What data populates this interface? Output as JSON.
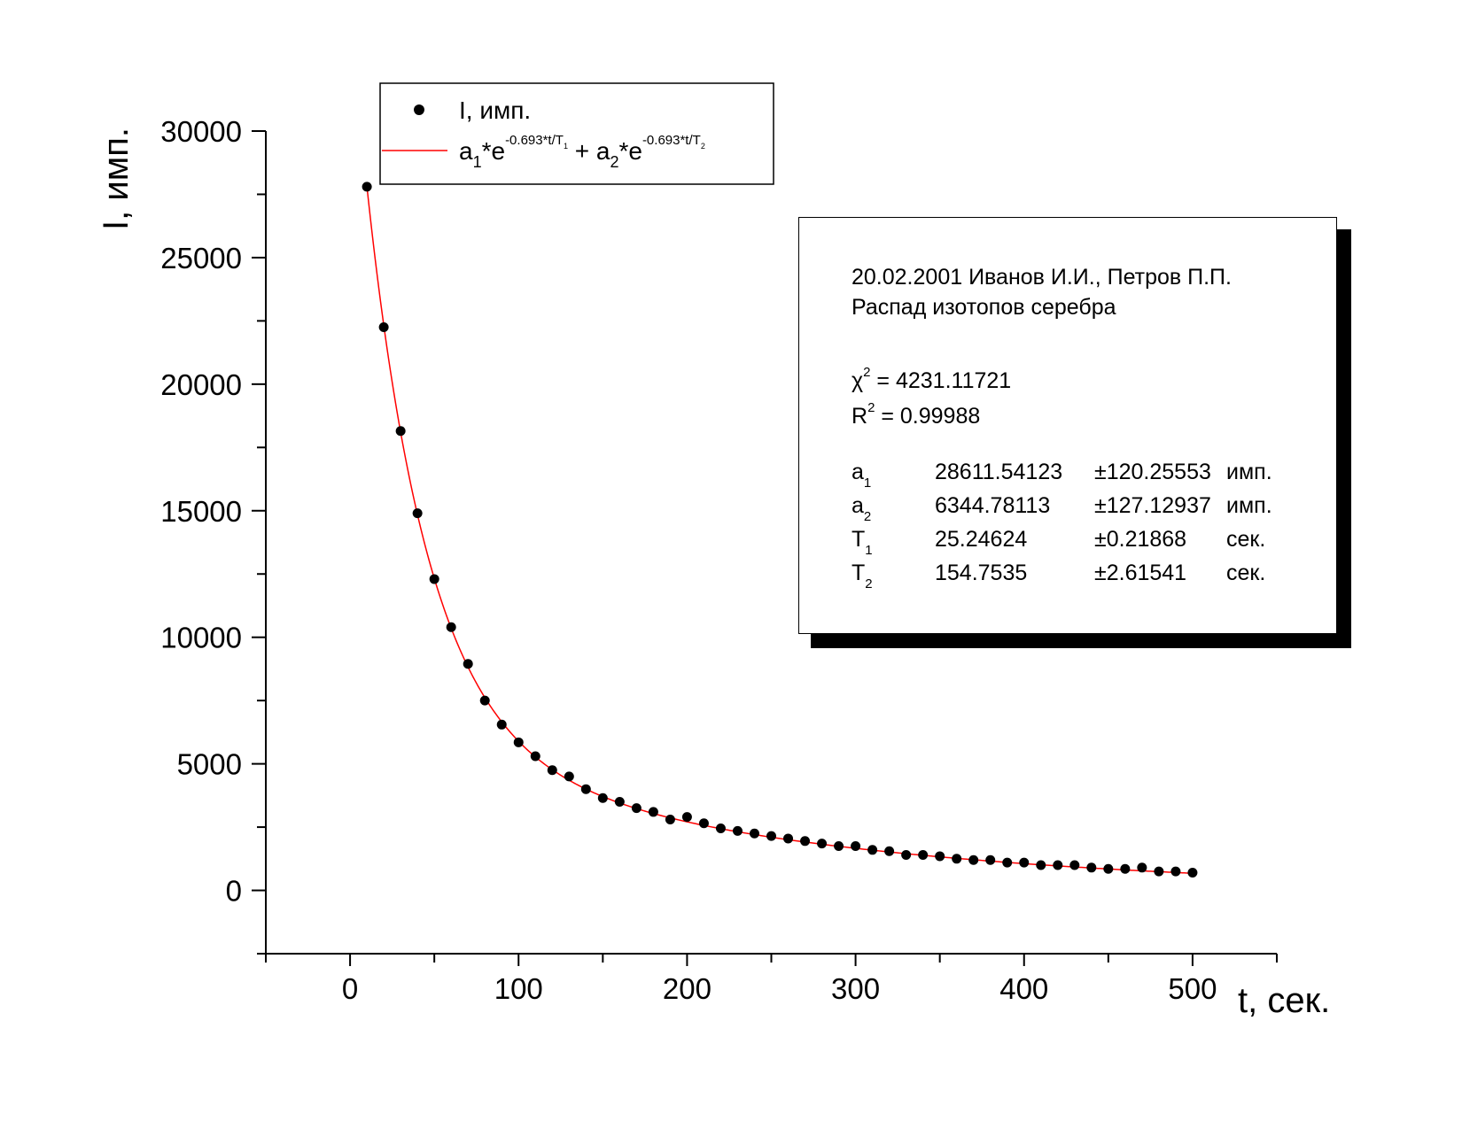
{
  "chart_data": {
    "type": "scatter",
    "xlabel": "t, сек.",
    "ylabel": "I, имп.",
    "xlim": [
      -50,
      550
    ],
    "ylim": [
      -2500,
      30000
    ],
    "x_ticks": [
      0,
      100,
      200,
      300,
      400,
      500
    ],
    "y_ticks": [
      0,
      5000,
      10000,
      15000,
      20000,
      25000,
      30000
    ],
    "grid": false,
    "legend_position": "top-left",
    "series": [
      {
        "name": "I, имп.",
        "kind": "scatter",
        "color": "#000000",
        "x": [
          10,
          20,
          30,
          40,
          50,
          60,
          70,
          80,
          90,
          100,
          110,
          120,
          130,
          140,
          150,
          160,
          170,
          180,
          190,
          200,
          210,
          220,
          230,
          240,
          250,
          260,
          270,
          280,
          290,
          300,
          310,
          320,
          330,
          340,
          350,
          360,
          370,
          380,
          390,
          400,
          410,
          420,
          430,
          440,
          450,
          460,
          470,
          480,
          490,
          500
        ],
        "y": [
          27800,
          22250,
          18150,
          14900,
          12300,
          10400,
          8950,
          7500,
          6550,
          5850,
          5300,
          4750,
          4500,
          4000,
          3650,
          3500,
          3250,
          3100,
          2800,
          2900,
          2650,
          2450,
          2350,
          2250,
          2150,
          2050,
          1950,
          1850,
          1750,
          1750,
          1600,
          1550,
          1400,
          1400,
          1350,
          1250,
          1200,
          1200,
          1100,
          1100,
          1000,
          1000,
          1000,
          900,
          850,
          850,
          900,
          750,
          750,
          700
        ]
      },
      {
        "name": "a1*e^(-0.693*t/T1) + a2*e^(-0.693*t/T2)",
        "kind": "fit-line",
        "color": "#ff0000",
        "function": "a1*exp(-0.693*t/T1) + a2*exp(-0.693*t/T2)",
        "parameters": {
          "a1": 28611.54123,
          "a2": 6344.78113,
          "T1": 25.24624,
          "T2": 154.7535
        },
        "x_range": [
          10,
          500
        ]
      }
    ]
  },
  "legend": {
    "scatter_label": "I, имп.",
    "fit_label": {
      "a": "a",
      "times": "*e",
      "exp": "-0.693*t/T",
      "plus": " + ",
      "sub1": "1",
      "sub2": "2"
    }
  },
  "info": {
    "date_authors": "20.02.2001 Иванов И.И., Петров П.П.",
    "subtitle": "Распад изотопов серебра",
    "chi_label": "χ",
    "chi_sup": "2",
    "chi_value": "=  4231.11721",
    "r_label": "R",
    "r_sup": "2",
    "r_value": "=  0.99988",
    "params": [
      {
        "sym": "a",
        "sub": "1",
        "value": "28611.54123",
        "error": "±120.25553",
        "unit": "имп."
      },
      {
        "sym": "a",
        "sub": "2",
        "value": "6344.78113",
        "error": "±127.12937",
        "unit": "имп."
      },
      {
        "sym": "T",
        "sub": "1",
        "value": "25.24624",
        "error": "±0.21868",
        "unit": "сек."
      },
      {
        "sym": "T",
        "sub": "2",
        "value": "154.7535",
        "error": "±2.61541",
        "unit": "сек."
      }
    ]
  }
}
